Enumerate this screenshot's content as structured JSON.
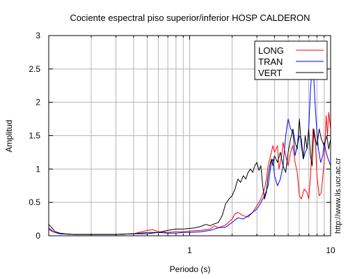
{
  "chart_data": {
    "type": "line",
    "title": "Cociente espectral piso superior/inferior  HOSP CALDERON",
    "xlabel": "Periodo (s)",
    "ylabel": "Amplitud",
    "x_scale": "log",
    "xlim": [
      0.1,
      10
    ],
    "ylim": [
      0,
      3
    ],
    "x_ticks": [
      {
        "value": 1,
        "label": "1"
      },
      {
        "value": 10,
        "label": "10"
      }
    ],
    "y_ticks": [
      {
        "value": 0,
        "label": "0"
      },
      {
        "value": 0.5,
        "label": "0.5"
      },
      {
        "value": 1,
        "label": "1"
      },
      {
        "value": 1.5,
        "label": "1.5"
      },
      {
        "value": 2,
        "label": "2"
      },
      {
        "value": 2.5,
        "label": "2.5"
      },
      {
        "value": 3,
        "label": "3"
      }
    ],
    "grid": true,
    "legend_position": "top-right",
    "annotation": "http://www.lis.ucr.ac.cr",
    "series": [
      {
        "name": "LONG",
        "color": "#ff0000",
        "points": [
          [
            0.1,
            0.12
          ],
          [
            0.105,
            0.08
          ],
          [
            0.11,
            0.05
          ],
          [
            0.12,
            0.03
          ],
          [
            0.15,
            0.02
          ],
          [
            0.2,
            0.02
          ],
          [
            0.3,
            0.02
          ],
          [
            0.4,
            0.03
          ],
          [
            0.5,
            0.08
          ],
          [
            0.55,
            0.09
          ],
          [
            0.6,
            0.06
          ],
          [
            0.7,
            0.05
          ],
          [
            0.8,
            0.06
          ],
          [
            0.9,
            0.06
          ],
          [
            1.0,
            0.07
          ],
          [
            1.2,
            0.08
          ],
          [
            1.4,
            0.1
          ],
          [
            1.5,
            0.15
          ],
          [
            1.6,
            0.12
          ],
          [
            1.8,
            0.16
          ],
          [
            2.0,
            0.25
          ],
          [
            2.1,
            0.33
          ],
          [
            2.2,
            0.35
          ],
          [
            2.4,
            0.3
          ],
          [
            2.6,
            0.28
          ],
          [
            2.8,
            0.35
          ],
          [
            3.0,
            0.45
          ],
          [
            3.2,
            0.55
          ],
          [
            3.4,
            0.7
          ],
          [
            3.5,
            0.85
          ],
          [
            3.6,
            1.05
          ],
          [
            3.8,
            1.25
          ],
          [
            3.9,
            1.35
          ],
          [
            4.0,
            1.25
          ],
          [
            4.2,
            1.35
          ],
          [
            4.3,
            1.0
          ],
          [
            4.5,
            1.2
          ],
          [
            4.6,
            1.4
          ],
          [
            4.8,
            1.2
          ],
          [
            5.0,
            1.05
          ],
          [
            5.2,
            1.25
          ],
          [
            5.4,
            1.35
          ],
          [
            5.6,
            1.1
          ],
          [
            5.8,
            0.95
          ],
          [
            6.0,
            0.6
          ],
          [
            6.2,
            0.55
          ],
          [
            6.5,
            0.7
          ],
          [
            6.8,
            0.65
          ],
          [
            7.0,
            0.55
          ],
          [
            7.2,
            0.9
          ],
          [
            7.5,
            1.6
          ],
          [
            7.8,
            1.4
          ],
          [
            8.0,
            0.9
          ],
          [
            8.3,
            0.6
          ],
          [
            8.6,
            0.65
          ],
          [
            9.0,
            1.1
          ],
          [
            9.3,
            1.8
          ],
          [
            9.5,
            1.5
          ],
          [
            9.7,
            1.85
          ],
          [
            10.0,
            1.6
          ]
        ]
      },
      {
        "name": "TRAN",
        "color": "#0000ff",
        "points": [
          [
            0.1,
            0.1
          ],
          [
            0.105,
            0.07
          ],
          [
            0.11,
            0.05
          ],
          [
            0.12,
            0.03
          ],
          [
            0.15,
            0.02
          ],
          [
            0.2,
            0.02
          ],
          [
            0.3,
            0.02
          ],
          [
            0.4,
            0.03
          ],
          [
            0.5,
            0.05
          ],
          [
            0.6,
            0.05
          ],
          [
            0.7,
            0.04
          ],
          [
            0.8,
            0.04
          ],
          [
            0.9,
            0.05
          ],
          [
            1.0,
            0.05
          ],
          [
            1.2,
            0.06
          ],
          [
            1.4,
            0.08
          ],
          [
            1.6,
            0.12
          ],
          [
            1.8,
            0.13
          ],
          [
            2.0,
            0.2
          ],
          [
            2.2,
            0.27
          ],
          [
            2.4,
            0.25
          ],
          [
            2.6,
            0.3
          ],
          [
            2.8,
            0.35
          ],
          [
            3.0,
            0.4
          ],
          [
            3.2,
            0.5
          ],
          [
            3.4,
            0.6
          ],
          [
            3.6,
            0.75
          ],
          [
            3.8,
            1.1
          ],
          [
            3.9,
            1.15
          ],
          [
            4.0,
            0.9
          ],
          [
            4.2,
            0.75
          ],
          [
            4.4,
            0.85
          ],
          [
            4.6,
            1.05
          ],
          [
            4.8,
            1.5
          ],
          [
            5.0,
            1.75
          ],
          [
            5.2,
            1.6
          ],
          [
            5.4,
            1.55
          ],
          [
            5.6,
            1.2
          ],
          [
            5.8,
            1.35
          ],
          [
            6.0,
            1.5
          ],
          [
            6.2,
            1.45
          ],
          [
            6.4,
            1.15
          ],
          [
            6.6,
            1.25
          ],
          [
            6.8,
            1.3
          ],
          [
            7.0,
            1.6
          ],
          [
            7.2,
            2.2
          ],
          [
            7.4,
            2.5
          ],
          [
            7.6,
            2.35
          ],
          [
            7.8,
            1.9
          ],
          [
            8.0,
            1.55
          ],
          [
            8.2,
            1.3
          ],
          [
            8.5,
            1.1
          ],
          [
            8.8,
            1.2
          ],
          [
            9.0,
            1.4
          ],
          [
            9.3,
            1.25
          ],
          [
            9.6,
            1.15
          ],
          [
            10.0,
            1.05
          ]
        ]
      },
      {
        "name": "VERT",
        "color": "#000000",
        "points": [
          [
            0.1,
            0.17
          ],
          [
            0.103,
            0.14
          ],
          [
            0.107,
            0.1
          ],
          [
            0.11,
            0.07
          ],
          [
            0.115,
            0.05
          ],
          [
            0.12,
            0.04
          ],
          [
            0.13,
            0.03
          ],
          [
            0.15,
            0.02
          ],
          [
            0.2,
            0.02
          ],
          [
            0.3,
            0.02
          ],
          [
            0.4,
            0.03
          ],
          [
            0.5,
            0.03
          ],
          [
            0.6,
            0.05
          ],
          [
            0.7,
            0.08
          ],
          [
            0.8,
            0.1
          ],
          [
            0.9,
            0.1
          ],
          [
            1.0,
            0.11
          ],
          [
            1.1,
            0.12
          ],
          [
            1.2,
            0.14
          ],
          [
            1.3,
            0.17
          ],
          [
            1.4,
            0.15
          ],
          [
            1.5,
            0.18
          ],
          [
            1.6,
            0.2
          ],
          [
            1.7,
            0.3
          ],
          [
            1.8,
            0.48
          ],
          [
            1.9,
            0.55
          ],
          [
            2.0,
            0.6
          ],
          [
            2.1,
            0.7
          ],
          [
            2.2,
            0.85
          ],
          [
            2.3,
            0.8
          ],
          [
            2.4,
            0.9
          ],
          [
            2.5,
            0.85
          ],
          [
            2.6,
            0.95
          ],
          [
            2.7,
            1.0
          ],
          [
            2.8,
            0.95
          ],
          [
            2.9,
            1.05
          ],
          [
            3.0,
            1.1
          ],
          [
            3.1,
            0.98
          ],
          [
            3.2,
            1.05
          ],
          [
            3.3,
            0.75
          ],
          [
            3.4,
            0.55
          ],
          [
            3.5,
            0.65
          ],
          [
            3.6,
            0.9
          ],
          [
            3.7,
            1.05
          ],
          [
            3.8,
            1.15
          ],
          [
            3.9,
            1.05
          ],
          [
            4.0,
            1.2
          ],
          [
            4.2,
            1.1
          ],
          [
            4.4,
            1.25
          ],
          [
            4.6,
            1.05
          ],
          [
            4.8,
            0.95
          ],
          [
            5.0,
            1.25
          ],
          [
            5.2,
            1.45
          ],
          [
            5.4,
            1.6
          ],
          [
            5.6,
            1.4
          ],
          [
            5.8,
            1.3
          ],
          [
            6.0,
            1.75
          ],
          [
            6.2,
            1.35
          ],
          [
            6.4,
            1.15
          ],
          [
            6.6,
            1.5
          ],
          [
            6.8,
            1.3
          ],
          [
            7.0,
            1.6
          ],
          [
            7.2,
            1.2
          ],
          [
            7.4,
            1.05
          ],
          [
            7.6,
            1.6
          ],
          [
            7.8,
            1.45
          ],
          [
            8.0,
            1.35
          ],
          [
            8.3,
            1.6
          ],
          [
            8.6,
            1.45
          ],
          [
            9.0,
            1.35
          ],
          [
            9.4,
            1.5
          ],
          [
            9.7,
            1.3
          ],
          [
            10.0,
            1.45
          ]
        ]
      }
    ]
  }
}
